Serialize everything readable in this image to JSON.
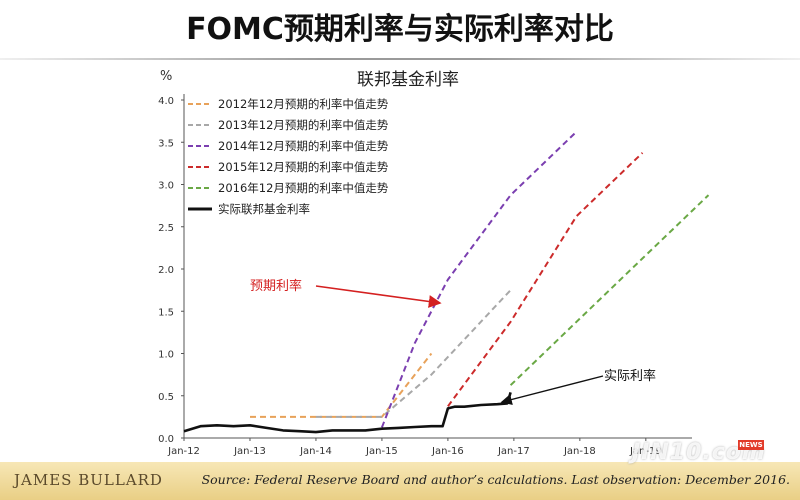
{
  "slide": {
    "title": "FOMC预期利率与实际利率对比"
  },
  "chart_data": {
    "type": "line",
    "title": "联邦基金利率",
    "y_unit": "%",
    "ylim": [
      0,
      4.0
    ],
    "y_ticks": [
      "0.0",
      "0.5",
      "1.0",
      "1.5",
      "2.0",
      "2.5",
      "3.0",
      "3.5",
      "4.0"
    ],
    "x_ticks": [
      "Jan-12",
      "Jan-13",
      "Jan-14",
      "Jan-15",
      "Jan-16",
      "Jan-17",
      "Jan-18",
      "Jan-19"
    ],
    "series": [
      {
        "name": "2012年12月预期的利率中值走势",
        "color": "#e8a25a",
        "dash": true,
        "points": [
          [
            2013.0,
            0.25
          ],
          [
            2015.0,
            0.25
          ],
          [
            2015.75,
            1.0
          ]
        ]
      },
      {
        "name": "2013年12月预期的利率中值走势",
        "color": "#a8a8a8",
        "dash": true,
        "points": [
          [
            2014.0,
            0.25
          ],
          [
            2015.0,
            0.25
          ],
          [
            2015.75,
            0.75
          ],
          [
            2016.95,
            1.75
          ]
        ]
      },
      {
        "name": "2014年12月预期的利率中值走势",
        "color": "#7b3fb0",
        "dash": true,
        "points": [
          [
            2015.0,
            0.125
          ],
          [
            2015.5,
            1.125
          ],
          [
            2016.0,
            1.875
          ],
          [
            2016.95,
            2.875
          ],
          [
            2017.95,
            3.625
          ]
        ]
      },
      {
        "name": "2015年12月预期的利率中值走势",
        "color": "#cc2b2b",
        "dash": true,
        "points": [
          [
            2016.0,
            0.375
          ],
          [
            2016.95,
            1.375
          ],
          [
            2017.95,
            2.625
          ],
          [
            2018.95,
            3.375
          ]
        ]
      },
      {
        "name": "2016年12月预期的利率中值走势",
        "color": "#6aa845",
        "dash": true,
        "points": [
          [
            2016.95,
            0.625
          ],
          [
            2017.95,
            1.375
          ],
          [
            2018.95,
            2.125
          ],
          [
            2019.95,
            2.875
          ]
        ]
      },
      {
        "name": "实际联邦基金利率",
        "color": "#111111",
        "dash": false,
        "points": [
          [
            2012.0,
            0.08
          ],
          [
            2012.25,
            0.14
          ],
          [
            2012.5,
            0.15
          ],
          [
            2012.75,
            0.14
          ],
          [
            2013.0,
            0.15
          ],
          [
            2013.25,
            0.12
          ],
          [
            2013.5,
            0.09
          ],
          [
            2013.75,
            0.08
          ],
          [
            2014.0,
            0.07
          ],
          [
            2014.25,
            0.09
          ],
          [
            2014.5,
            0.09
          ],
          [
            2014.75,
            0.09
          ],
          [
            2015.0,
            0.11
          ],
          [
            2015.25,
            0.12
          ],
          [
            2015.5,
            0.13
          ],
          [
            2015.75,
            0.14
          ],
          [
            2015.92,
            0.14
          ],
          [
            2016.0,
            0.35
          ],
          [
            2016.1,
            0.37
          ],
          [
            2016.25,
            0.37
          ],
          [
            2016.5,
            0.39
          ],
          [
            2016.75,
            0.4
          ],
          [
            2016.9,
            0.41
          ],
          [
            2016.95,
            0.54
          ]
        ]
      }
    ],
    "annotations": {
      "expected": "预期利率",
      "actual": "实际利率"
    }
  },
  "footer": {
    "author": "JAMES BULLARD",
    "source": "Source: Federal Reserve Board and author’s calculations. Last observation: December 2016."
  },
  "watermark": {
    "text": "JIN10.com",
    "badge": "NEWS"
  }
}
